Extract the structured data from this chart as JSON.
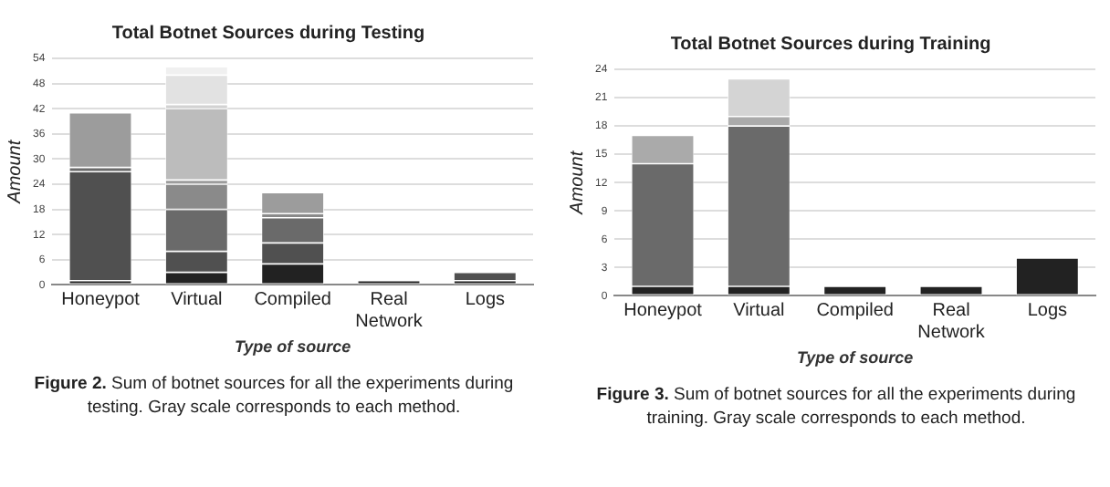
{
  "chart_data": [
    {
      "type": "bar",
      "title": "Total Botnet Sources during Testing",
      "xlabel": "Type of source",
      "ylabel": "Amount",
      "categories": [
        "Honeypot",
        "Virtual",
        "Compiled",
        "Real Network",
        "Logs"
      ],
      "stacked": true,
      "ylim": [
        0,
        54
      ],
      "yticks": [
        0,
        6,
        12,
        18,
        24,
        30,
        36,
        42,
        48,
        54
      ],
      "grid": "y",
      "legend": false,
      "annotations": [
        "Figure 2. Sum of botnet sources for all the experiments during testing. Gray scale corresponds to each method."
      ],
      "series": [
        {
          "color": "#222222",
          "values": [
            1,
            3,
            5,
            1,
            1
          ]
        },
        {
          "color": "#505050",
          "values": [
            26,
            5,
            5,
            0,
            2
          ]
        },
        {
          "color": "#6a6a6a",
          "values": [
            1,
            10,
            6,
            0,
            0
          ]
        },
        {
          "color": "#8a8a8a",
          "values": [
            0,
            6,
            1,
            0,
            0
          ]
        },
        {
          "color": "#9c9c9c",
          "values": [
            13,
            1,
            5,
            0,
            0
          ]
        },
        {
          "color": "#bcbcbc",
          "values": [
            0,
            17,
            0,
            0,
            0
          ]
        },
        {
          "color": "#d2d2d2",
          "values": [
            0,
            1,
            0,
            0,
            0
          ]
        },
        {
          "color": "#e2e2e2",
          "values": [
            0,
            7,
            0,
            0,
            0
          ]
        },
        {
          "color": "#f0f0f0",
          "values": [
            0,
            2,
            0,
            0,
            0
          ]
        }
      ]
    },
    {
      "type": "bar",
      "title": "Total Botnet Sources during Training",
      "xlabel": "Type of source",
      "ylabel": "Amount",
      "categories": [
        "Honeypot",
        "Virtual",
        "Compiled",
        "Real Network",
        "Logs"
      ],
      "stacked": true,
      "ylim": [
        0,
        24
      ],
      "yticks": [
        0,
        3,
        6,
        9,
        12,
        15,
        18,
        21,
        24
      ],
      "grid": "y",
      "legend": false,
      "annotations": [
        "Figure 3. Sum of botnet sources for all the experiments during training. Gray scale corresponds to each method."
      ],
      "series": [
        {
          "color": "#222222",
          "values": [
            1,
            1,
            1,
            1,
            4
          ]
        },
        {
          "color": "#6a6a6a",
          "values": [
            13,
            17,
            0,
            0,
            0
          ]
        },
        {
          "color": "#aaaaaa",
          "values": [
            3,
            1,
            0,
            0,
            0
          ]
        },
        {
          "color": "#d4d4d4",
          "values": [
            0,
            4,
            0,
            0,
            0
          ]
        }
      ]
    }
  ]
}
